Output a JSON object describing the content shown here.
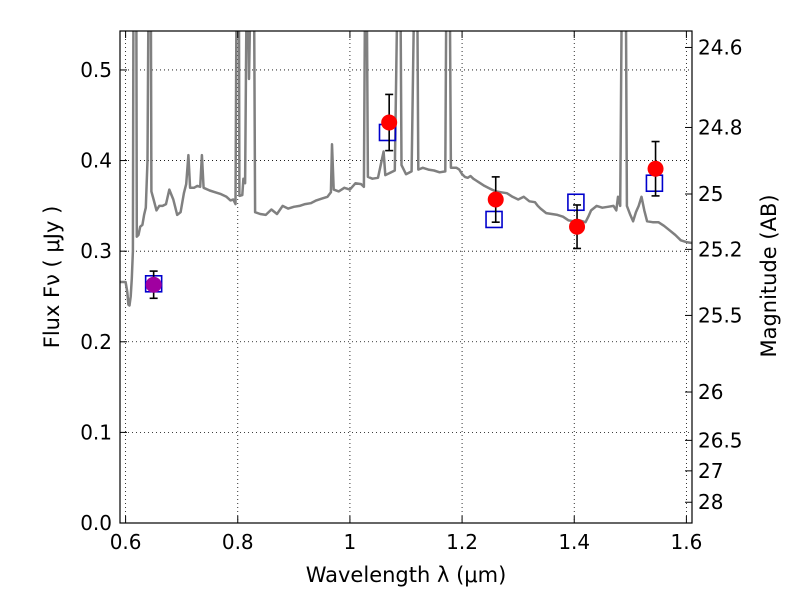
{
  "chart_data": {
    "type": "scatter",
    "xlabel": "Wavelength  λ (μm)",
    "ylabel": "Flux  Fν  ( μJy )",
    "ylabel2": "Magnitude (AB)",
    "xlim": [
      0.59,
      1.61
    ],
    "ylim": [
      0.0,
      0.543
    ],
    "grid": true,
    "x_ticks": [
      {
        "value": 0.6,
        "label": "0.6"
      },
      {
        "value": 0.8,
        "label": "0.8"
      },
      {
        "value": 1.0,
        "label": "1"
      },
      {
        "value": 1.2,
        "label": "1.2"
      },
      {
        "value": 1.4,
        "label": "1.4"
      },
      {
        "value": 1.6,
        "label": "1.6"
      }
    ],
    "y_ticks": [
      {
        "value": 0.0,
        "label": "0.0"
      },
      {
        "value": 0.1,
        "label": "0.1"
      },
      {
        "value": 0.2,
        "label": "0.2"
      },
      {
        "value": 0.3,
        "label": "0.3"
      },
      {
        "value": 0.4,
        "label": "0.4"
      },
      {
        "value": 0.5,
        "label": "0.5"
      }
    ],
    "mag_ticks": [
      {
        "value": 24.6,
        "label": "24.6"
      },
      {
        "value": 24.8,
        "label": "24.8"
      },
      {
        "value": 25.0,
        "label": "25"
      },
      {
        "value": 25.2,
        "label": "25.2"
      },
      {
        "value": 25.5,
        "label": "25.5"
      },
      {
        "value": 26.0,
        "label": "26"
      },
      {
        "value": 26.5,
        "label": "26.5"
      },
      {
        "value": 27.0,
        "label": "27"
      },
      {
        "value": 28.0,
        "label": "28"
      }
    ],
    "series": [
      {
        "kind": "line",
        "color": "#808080",
        "points": [
          [
            0.59,
            0.266
          ],
          [
            0.6,
            0.266
          ],
          [
            0.603,
            0.255
          ],
          [
            0.605,
            0.241
          ],
          [
            0.607,
            0.24
          ],
          [
            0.609,
            0.25
          ],
          [
            0.611,
            0.27
          ],
          [
            0.613,
            0.3
          ],
          [
            0.614,
            0.6
          ],
          [
            0.619,
            0.6
          ],
          [
            0.62,
            0.316
          ],
          [
            0.623,
            0.318
          ],
          [
            0.626,
            0.327
          ],
          [
            0.63,
            0.329
          ],
          [
            0.633,
            0.34
          ],
          [
            0.636,
            0.348
          ],
          [
            0.639,
            0.4
          ],
          [
            0.641,
            0.6
          ],
          [
            0.645,
            0.6
          ],
          [
            0.646,
            0.366
          ],
          [
            0.65,
            0.357
          ],
          [
            0.655,
            0.345
          ],
          [
            0.66,
            0.35
          ],
          [
            0.666,
            0.35
          ],
          [
            0.672,
            0.352
          ],
          [
            0.678,
            0.368
          ],
          [
            0.685,
            0.357
          ],
          [
            0.692,
            0.34
          ],
          [
            0.698,
            0.343
          ],
          [
            0.704,
            0.364
          ],
          [
            0.708,
            0.374
          ],
          [
            0.712,
            0.406
          ],
          [
            0.715,
            0.37
          ],
          [
            0.722,
            0.37
          ],
          [
            0.728,
            0.372
          ],
          [
            0.733,
            0.371
          ],
          [
            0.736,
            0.406
          ],
          [
            0.739,
            0.37
          ],
          [
            0.75,
            0.367
          ],
          [
            0.76,
            0.365
          ],
          [
            0.77,
            0.363
          ],
          [
            0.78,
            0.36
          ],
          [
            0.787,
            0.356
          ],
          [
            0.792,
            0.357
          ],
          [
            0.796,
            0.352
          ],
          [
            0.798,
            0.6
          ],
          [
            0.802,
            0.6
          ],
          [
            0.803,
            0.361
          ],
          [
            0.808,
            0.362
          ],
          [
            0.81,
            0.38
          ],
          [
            0.813,
            0.375
          ],
          [
            0.816,
            0.6
          ],
          [
            0.818,
            0.6
          ],
          [
            0.82,
            0.49
          ],
          [
            0.823,
            0.6
          ],
          [
            0.829,
            0.6
          ],
          [
            0.831,
            0.343
          ],
          [
            0.84,
            0.341
          ],
          [
            0.85,
            0.34
          ],
          [
            0.86,
            0.346
          ],
          [
            0.87,
            0.341
          ],
          [
            0.88,
            0.35
          ],
          [
            0.89,
            0.347
          ],
          [
            0.9,
            0.349
          ],
          [
            0.91,
            0.35
          ],
          [
            0.92,
            0.352
          ],
          [
            0.93,
            0.353
          ],
          [
            0.94,
            0.356
          ],
          [
            0.95,
            0.358
          ],
          [
            0.96,
            0.36
          ],
          [
            0.966,
            0.365
          ],
          [
            0.968,
            0.418
          ],
          [
            0.971,
            0.368
          ],
          [
            0.98,
            0.366
          ],
          [
            0.99,
            0.37
          ],
          [
            1.0,
            0.368
          ],
          [
            1.01,
            0.375
          ],
          [
            1.02,
            0.374
          ],
          [
            1.025,
            0.371
          ],
          [
            1.027,
            0.6
          ],
          [
            1.03,
            0.6
          ],
          [
            1.032,
            0.382
          ],
          [
            1.04,
            0.38
          ],
          [
            1.05,
            0.381
          ],
          [
            1.06,
            0.41
          ],
          [
            1.063,
            0.384
          ],
          [
            1.07,
            0.386
          ],
          [
            1.08,
            0.389
          ],
          [
            1.085,
            0.6
          ],
          [
            1.09,
            0.6
          ],
          [
            1.092,
            0.395
          ],
          [
            1.1,
            0.385
          ],
          [
            1.11,
            0.388
          ],
          [
            1.115,
            0.6
          ],
          [
            1.12,
            0.6
          ],
          [
            1.122,
            0.39
          ],
          [
            1.13,
            0.392
          ],
          [
            1.14,
            0.39
          ],
          [
            1.15,
            0.389
          ],
          [
            1.16,
            0.387
          ],
          [
            1.17,
            0.388
          ],
          [
            1.172,
            0.6
          ],
          [
            1.178,
            0.6
          ],
          [
            1.18,
            0.392
          ],
          [
            1.19,
            0.392
          ],
          [
            1.195,
            0.39
          ],
          [
            1.2,
            0.385
          ],
          [
            1.205,
            0.382
          ],
          [
            1.21,
            0.381
          ],
          [
            1.215,
            0.383
          ],
          [
            1.22,
            0.38
          ],
          [
            1.225,
            0.378
          ],
          [
            1.23,
            0.376
          ],
          [
            1.24,
            0.372
          ],
          [
            1.25,
            0.369
          ],
          [
            1.26,
            0.366
          ],
          [
            1.27,
            0.365
          ],
          [
            1.28,
            0.364
          ],
          [
            1.29,
            0.36
          ],
          [
            1.3,
            0.357
          ],
          [
            1.31,
            0.36
          ],
          [
            1.32,
            0.355
          ],
          [
            1.33,
            0.354
          ],
          [
            1.335,
            0.35
          ],
          [
            1.34,
            0.347
          ],
          [
            1.35,
            0.342
          ],
          [
            1.36,
            0.341
          ],
          [
            1.37,
            0.34
          ],
          [
            1.38,
            0.338
          ],
          [
            1.39,
            0.334
          ],
          [
            1.4,
            0.333
          ],
          [
            1.41,
            0.334
          ],
          [
            1.42,
            0.332
          ],
          [
            1.425,
            0.338
          ],
          [
            1.43,
            0.345
          ],
          [
            1.44,
            0.35
          ],
          [
            1.45,
            0.348
          ],
          [
            1.46,
            0.349
          ],
          [
            1.47,
            0.35
          ],
          [
            1.475,
            0.345
          ],
          [
            1.478,
            0.36
          ],
          [
            1.482,
            0.35
          ],
          [
            1.485,
            0.6
          ],
          [
            1.492,
            0.6
          ],
          [
            1.494,
            0.35
          ],
          [
            1.5,
            0.34
          ],
          [
            1.505,
            0.333
          ],
          [
            1.51,
            0.343
          ],
          [
            1.515,
            0.35
          ],
          [
            1.52,
            0.36
          ],
          [
            1.525,
            0.345
          ],
          [
            1.53,
            0.333
          ],
          [
            1.54,
            0.332
          ],
          [
            1.55,
            0.332
          ],
          [
            1.56,
            0.328
          ],
          [
            1.57,
            0.323
          ],
          [
            1.58,
            0.318
          ],
          [
            1.59,
            0.312
          ],
          [
            1.6,
            0.31
          ],
          [
            1.61,
            0.309
          ]
        ]
      },
      {
        "kind": "squares",
        "color": "#0000cc",
        "points": [
          [
            0.65,
            0.264
          ],
          [
            1.067,
            0.431
          ],
          [
            1.257,
            0.335
          ],
          [
            1.403,
            0.354
          ],
          [
            1.543,
            0.375
          ]
        ]
      },
      {
        "kind": "markers",
        "color": "#ff0000",
        "points": [
          {
            "x": 0.65,
            "y": 0.263,
            "err": 0.015,
            "color": "#a000a0"
          },
          {
            "x": 1.07,
            "y": 0.442,
            "err": 0.031
          },
          {
            "x": 1.26,
            "y": 0.357,
            "err": 0.025
          },
          {
            "x": 1.405,
            "y": 0.327,
            "err": 0.024
          },
          {
            "x": 1.545,
            "y": 0.391,
            "err": 0.03
          }
        ]
      }
    ]
  }
}
